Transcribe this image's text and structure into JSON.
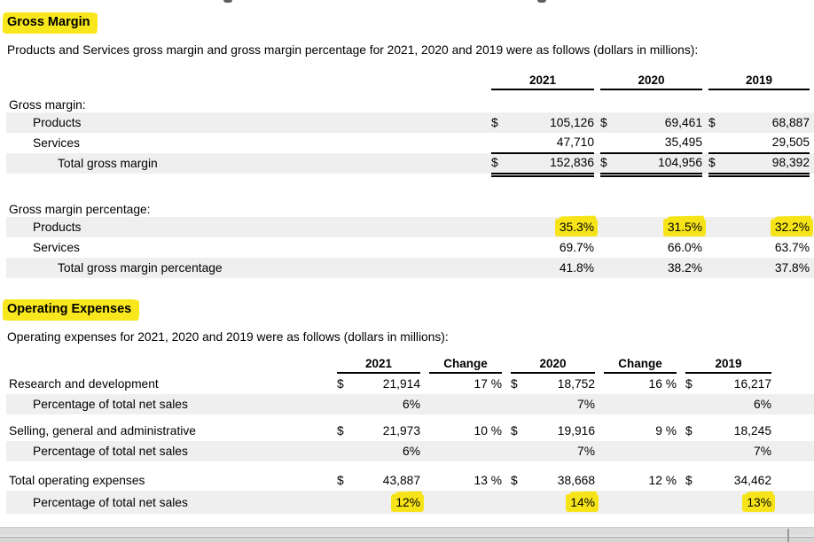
{
  "colors": {
    "highlight_yellow": "#f6e419",
    "row_shade": "#efefef",
    "text": "#000000"
  },
  "currency_symbol": "$",
  "gross_margin_section": {
    "heading": "Gross Margin",
    "intro": "Products and Services gross margin and gross margin percentage for 2021, 2020 and 2019 were as follows (dollars in millions):",
    "col_headers": [
      "2021",
      "2020",
      "2019"
    ],
    "group_label": "Gross margin:",
    "rows": [
      {
        "label": "Products",
        "y2021": "105,126",
        "y2020": "69,461",
        "y2019": "68,887"
      },
      {
        "label": "Services",
        "y2021": "47,710",
        "y2020": "35,495",
        "y2019": "29,505"
      },
      {
        "label": "Total gross margin",
        "y2021": "152,836",
        "y2020": "104,956",
        "y2019": "98,392"
      }
    ],
    "pct_group_label": "Gross margin percentage:",
    "pct_rows": [
      {
        "label": "Products",
        "y2021": "35.3%",
        "y2020": "31.5%",
        "y2019": "32.2%",
        "highlighted": true
      },
      {
        "label": "Services",
        "y2021": "69.7%",
        "y2020": "66.0%",
        "y2019": "63.7%",
        "highlighted": false
      },
      {
        "label": "Total gross margin percentage",
        "y2021": "41.8%",
        "y2020": "38.2%",
        "y2019": "37.8%",
        "highlighted": false
      }
    ]
  },
  "operating_expenses_section": {
    "heading": "Operating Expenses",
    "intro": "Operating expenses for 2021, 2020 and 2019 were as follows (dollars in millions):",
    "col_headers": [
      "2021",
      "Change",
      "2020",
      "Change",
      "2019"
    ],
    "rows": [
      {
        "label": "Research and development",
        "y2021": "21,914",
        "change1": "17 %",
        "y2020": "18,752",
        "change2": "16 %",
        "y2019": "16,217"
      },
      {
        "label": "Percentage of total net sales",
        "y2021": "6%",
        "y2020": "7%",
        "y2019": "6%"
      },
      {
        "label": "Selling, general and administrative",
        "y2021": "21,973",
        "change1": "10 %",
        "y2020": "19,916",
        "change2": "9 %",
        "y2019": "18,245"
      },
      {
        "label": "Percentage of total net sales",
        "y2021": "6%",
        "y2020": "7%",
        "y2019": "7%"
      },
      {
        "label": "Total operating expenses",
        "y2021": "43,887",
        "change1": "13 %",
        "y2020": "38,668",
        "change2": "12 %",
        "y2019": "34,462"
      },
      {
        "label": "Percentage of total net sales",
        "y2021": "12%",
        "y2020": "14%",
        "y2019": "13%",
        "highlighted": true
      }
    ]
  }
}
